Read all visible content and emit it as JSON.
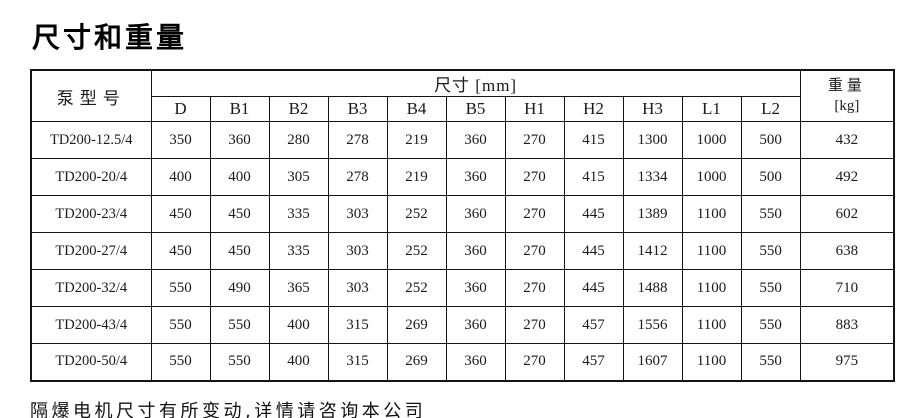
{
  "title": "尺寸和重量",
  "table": {
    "model_header": "泵型号",
    "dims_header": "尺寸 [mm]",
    "weight_header_line1": "重量",
    "weight_header_line2": "[kg]",
    "columns": [
      "D",
      "B1",
      "B2",
      "B3",
      "B4",
      "B5",
      "H1",
      "H2",
      "H3",
      "L1",
      "L2"
    ],
    "rows": [
      {
        "model": "TD200-12.5/4",
        "values": [
          350,
          360,
          280,
          278,
          219,
          360,
          270,
          415,
          1300,
          1000,
          500
        ],
        "weight": 432
      },
      {
        "model": "TD200-20/4",
        "values": [
          400,
          400,
          305,
          278,
          219,
          360,
          270,
          415,
          1334,
          1000,
          500
        ],
        "weight": 492
      },
      {
        "model": "TD200-23/4",
        "values": [
          450,
          450,
          335,
          303,
          252,
          360,
          270,
          445,
          1389,
          1100,
          550
        ],
        "weight": 602
      },
      {
        "model": "TD200-27/4",
        "values": [
          450,
          450,
          335,
          303,
          252,
          360,
          270,
          445,
          1412,
          1100,
          550
        ],
        "weight": 638
      },
      {
        "model": "TD200-32/4",
        "values": [
          550,
          490,
          365,
          303,
          252,
          360,
          270,
          445,
          1488,
          1100,
          550
        ],
        "weight": 710
      },
      {
        "model": "TD200-43/4",
        "values": [
          550,
          550,
          400,
          315,
          269,
          360,
          270,
          457,
          1556,
          1100,
          550
        ],
        "weight": 883
      },
      {
        "model": "TD200-50/4",
        "values": [
          550,
          550,
          400,
          315,
          269,
          360,
          270,
          457,
          1607,
          1100,
          550
        ],
        "weight": 975
      }
    ]
  },
  "footer_note": "隔爆电机尺寸有所变动,详情请咨询本公司"
}
